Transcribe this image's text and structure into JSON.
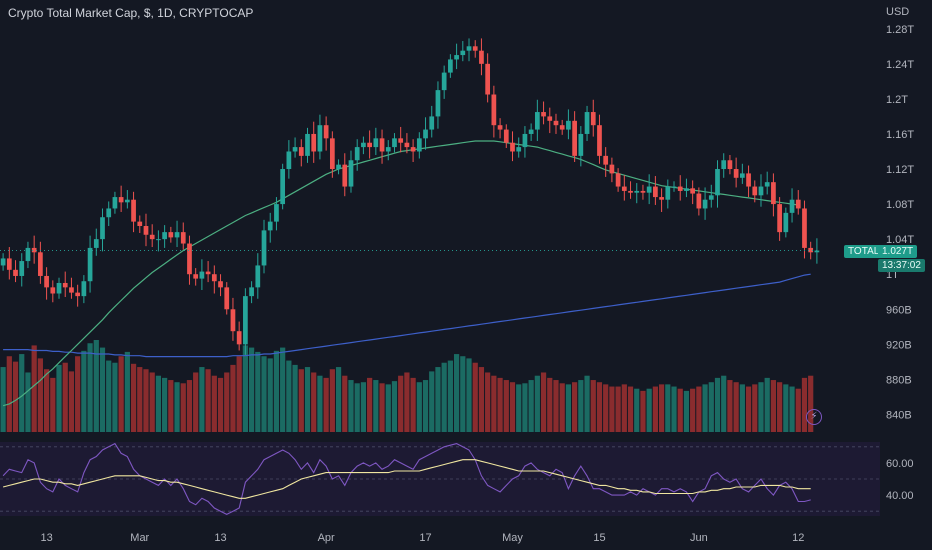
{
  "header": {
    "title": "Crypto Total Market Cap, $, 1D, CRYPTOCAP",
    "currency": "USD"
  },
  "price_tag": {
    "label": "TOTAL",
    "value": "1.027T",
    "countdown": "13:37:02"
  },
  "colors": {
    "up": "#26a69a",
    "down": "#ef5350",
    "ma_short": "#4caf82",
    "ma_long": "#3d5fc9",
    "rsi": "#7e57c2",
    "rsi_ma": "#f0e6a0",
    "volume_up": "#1b6b63",
    "volume_down": "#8a2c2e",
    "bg": "#141823"
  },
  "icons": {
    "bolt": "lightning-icon"
  },
  "chart_data": [
    {
      "type": "candlestick",
      "title": "Crypto Total Market Cap, $, 1D, CRYPTOCAP",
      "ylabel": "USD",
      "y_ticks": [
        "1.28T",
        "1.24T",
        "1.2T",
        "1.16T",
        "1.12T",
        "1.08T",
        "1.04T",
        "1T",
        "960B",
        "920B",
        "880B",
        "840B"
      ],
      "y_tick_values": [
        1280,
        1240,
        1200,
        1160,
        1120,
        1080,
        1040,
        1000,
        960,
        920,
        880,
        840
      ],
      "ylim": [
        820,
        1290
      ],
      "x_ticks": [
        "13",
        "Mar",
        "13",
        "Apr",
        "17",
        "May",
        "15",
        "Jun",
        "12"
      ],
      "close": [
        1018,
        1005,
        998,
        1015,
        1030,
        1025,
        998,
        985,
        978,
        990,
        985,
        979,
        975,
        992,
        1030,
        1040,
        1065,
        1075,
        1088,
        1082,
        1085,
        1060,
        1055,
        1045,
        1040,
        1040,
        1048,
        1042,
        1048,
        1035,
        1000,
        995,
        1003,
        1000,
        992,
        985,
        960,
        935,
        920,
        975,
        985,
        1010,
        1050,
        1060,
        1080,
        1120,
        1140,
        1145,
        1135,
        1160,
        1140,
        1170,
        1155,
        1120,
        1125,
        1100,
        1130,
        1145,
        1150,
        1145,
        1155,
        1140,
        1145,
        1155,
        1150,
        1145,
        1140,
        1155,
        1165,
        1180,
        1210,
        1230,
        1245,
        1250,
        1255,
        1260,
        1255,
        1240,
        1205,
        1170,
        1165,
        1150,
        1140,
        1145,
        1160,
        1165,
        1185,
        1180,
        1175,
        1170,
        1165,
        1175,
        1135,
        1160,
        1185,
        1170,
        1135,
        1125,
        1115,
        1100,
        1095,
        1093,
        1095,
        1093,
        1100,
        1088,
        1085,
        1100,
        1100,
        1095,
        1098,
        1092,
        1075,
        1085,
        1090,
        1120,
        1130,
        1120,
        1110,
        1115,
        1100,
        1090,
        1100,
        1105,
        1080,
        1048,
        1070,
        1085,
        1075,
        1030,
        1025,
        1027
      ],
      "open": [
        1010,
        1018,
        1005,
        998,
        1015,
        1030,
        1025,
        998,
        985,
        978,
        990,
        985,
        979,
        975,
        992,
        1030,
        1040,
        1065,
        1075,
        1088,
        1082,
        1085,
        1060,
        1055,
        1045,
        1040,
        1040,
        1048,
        1042,
        1048,
        1035,
        1000,
        995,
        1003,
        1000,
        992,
        985,
        960,
        935,
        920,
        975,
        985,
        1010,
        1050,
        1060,
        1080,
        1120,
        1140,
        1145,
        1135,
        1160,
        1140,
        1170,
        1155,
        1120,
        1125,
        1100,
        1130,
        1145,
        1150,
        1145,
        1155,
        1140,
        1145,
        1155,
        1150,
        1145,
        1140,
        1155,
        1165,
        1180,
        1210,
        1230,
        1245,
        1250,
        1255,
        1260,
        1255,
        1240,
        1205,
        1170,
        1165,
        1150,
        1140,
        1145,
        1160,
        1165,
        1185,
        1180,
        1175,
        1170,
        1165,
        1175,
        1135,
        1160,
        1185,
        1170,
        1135,
        1125,
        1115,
        1100,
        1095,
        1093,
        1095,
        1093,
        1100,
        1088,
        1085,
        1100,
        1100,
        1095,
        1098,
        1092,
        1075,
        1085,
        1090,
        1120,
        1130,
        1120,
        1110,
        1115,
        1100,
        1090,
        1100,
        1105,
        1080,
        1048,
        1070,
        1085,
        1075,
        1030,
        1025
      ],
      "ma_short_y": [
        850,
        852,
        856,
        861,
        867,
        873,
        879,
        886,
        892,
        899,
        906,
        913,
        920,
        927,
        934,
        941,
        948,
        956,
        963,
        970,
        977,
        984,
        990,
        996,
        1002,
        1007,
        1012,
        1017,
        1022,
        1027,
        1031,
        1035,
        1039,
        1043,
        1047,
        1051,
        1055,
        1059,
        1063,
        1067,
        1070,
        1073,
        1076,
        1079,
        1082,
        1086,
        1090,
        1094,
        1098,
        1102,
        1106,
        1110,
        1114,
        1117,
        1120,
        1122,
        1124,
        1126,
        1128,
        1130,
        1132,
        1134,
        1136,
        1138,
        1140,
        1141,
        1142,
        1143,
        1144,
        1145,
        1146,
        1147,
        1148,
        1149,
        1150,
        1151,
        1152,
        1152,
        1152,
        1152,
        1151,
        1150,
        1149,
        1148,
        1147,
        1146,
        1145,
        1143,
        1141,
        1139,
        1137,
        1135,
        1133,
        1131,
        1128,
        1125,
        1122,
        1119,
        1117,
        1115,
        1113,
        1111,
        1109,
        1107,
        1105,
        1103,
        1101,
        1100,
        1099,
        1098,
        1097,
        1096,
        1095,
        1094,
        1093,
        1092,
        1091,
        1090,
        1089,
        1088,
        1087,
        1086,
        1085,
        1084,
        1083,
        1082,
        1081,
        1080,
        1079
      ],
      "ma_long_y": [
        914,
        914,
        914,
        914,
        914,
        913,
        913,
        913,
        912,
        912,
        911,
        911,
        910,
        910,
        910,
        909,
        909,
        909,
        908,
        908,
        907,
        907,
        907,
        906,
        906,
        906,
        906,
        906,
        906,
        906,
        906,
        906,
        906,
        906,
        906,
        906,
        906,
        907,
        907,
        907,
        908,
        908,
        909,
        909,
        910,
        911,
        912,
        913,
        914,
        915,
        916,
        917,
        918,
        919,
        920,
        921,
        922,
        923,
        924,
        925,
        926,
        927,
        928,
        929,
        930,
        931,
        932,
        933,
        934,
        935,
        936,
        937,
        938,
        939,
        940,
        941,
        942,
        943,
        944,
        945,
        946,
        947,
        948,
        949,
        950,
        951,
        952,
        953,
        954,
        955,
        956,
        957,
        958,
        959,
        960,
        961,
        962,
        963,
        964,
        965,
        966,
        967,
        968,
        969,
        970,
        971,
        972,
        973,
        974,
        975,
        976,
        977,
        978,
        979,
        980,
        981,
        982,
        983,
        984,
        985,
        986,
        987,
        988,
        989,
        990,
        991,
        993,
        995,
        997,
        999,
        1000
      ]
    },
    {
      "type": "bar",
      "title": "",
      "xlabel": "",
      "ylabel": "",
      "values": [
        60,
        70,
        65,
        72,
        55,
        80,
        68,
        58,
        50,
        62,
        64,
        56,
        70,
        75,
        82,
        85,
        78,
        66,
        64,
        70,
        74,
        63,
        60,
        58,
        55,
        52,
        50,
        48,
        46,
        45,
        48,
        55,
        60,
        58,
        52,
        50,
        55,
        62,
        70,
        80,
        78,
        74,
        70,
        68,
        75,
        78,
        66,
        62,
        58,
        60,
        55,
        52,
        50,
        58,
        60,
        52,
        48,
        45,
        46,
        50,
        48,
        45,
        44,
        47,
        52,
        55,
        50,
        46,
        48,
        56,
        60,
        64,
        66,
        72,
        70,
        68,
        64,
        60,
        55,
        52,
        50,
        48,
        46,
        44,
        45,
        48,
        52,
        55,
        50,
        48,
        45,
        44,
        46,
        48,
        52,
        48,
        46,
        44,
        42,
        42,
        44,
        42,
        40,
        38,
        40,
        42,
        44,
        44,
        42,
        40,
        38,
        40,
        42,
        44,
        46,
        50,
        52,
        48,
        46,
        44,
        42,
        44,
        46,
        50,
        48,
        46,
        44,
        42,
        40,
        50,
        52
      ]
    },
    {
      "type": "line",
      "title": "",
      "y_ticks": [
        "60.00",
        "40.00"
      ],
      "y_tick_values": [
        60,
        40
      ],
      "ylim": [
        27,
        73
      ],
      "series": [
        {
          "values": [
            52,
            56,
            55,
            54,
            62,
            60,
            48,
            44,
            42,
            50,
            46,
            44,
            42,
            54,
            62,
            64,
            68,
            70,
            72,
            66,
            64,
            56,
            52,
            50,
            48,
            46,
            50,
            46,
            50,
            44,
            36,
            34,
            38,
            36,
            32,
            30,
            28,
            30,
            32,
            48,
            52,
            56,
            62,
            64,
            66,
            68,
            66,
            62,
            56,
            60,
            54,
            62,
            58,
            50,
            52,
            46,
            54,
            58,
            60,
            58,
            60,
            56,
            58,
            62,
            60,
            58,
            56,
            62,
            64,
            66,
            68,
            70,
            71,
            72,
            70,
            68,
            62,
            52,
            46,
            44,
            42,
            46,
            50,
            52,
            58,
            60,
            56,
            54,
            52,
            56,
            54,
            44,
            52,
            58,
            52,
            44,
            44,
            42,
            40,
            40,
            40,
            42,
            40,
            44,
            42,
            40,
            44,
            44,
            42,
            44,
            42,
            36,
            42,
            44,
            52,
            54,
            50,
            48,
            50,
            44,
            42,
            46,
            50,
            44,
            40,
            46,
            48,
            44,
            36,
            36,
            37
          ]
        },
        {
          "values": [
            45,
            46,
            47,
            48,
            49,
            50,
            50,
            49,
            48,
            48,
            47,
            47,
            46,
            47,
            48,
            49,
            50,
            51,
            52,
            52,
            52,
            52,
            52,
            51,
            50,
            49,
            49,
            48,
            48,
            47,
            46,
            45,
            44,
            43,
            42,
            41,
            40,
            39,
            38,
            38,
            39,
            40,
            41,
            42,
            43,
            44,
            46,
            48,
            50,
            51,
            52,
            53,
            54,
            54,
            54,
            54,
            54,
            54,
            54,
            54,
            54,
            54,
            54,
            55,
            55,
            55,
            55,
            55,
            56,
            57,
            58,
            59,
            60,
            61,
            62,
            62,
            62,
            61,
            60,
            59,
            58,
            57,
            56,
            55,
            55,
            55,
            55,
            55,
            54,
            53,
            52,
            51,
            50,
            49,
            48,
            47,
            46,
            46,
            45,
            44,
            44,
            43,
            43,
            42,
            42,
            41,
            41,
            41,
            41,
            41,
            41,
            41,
            42,
            42,
            43,
            43,
            44,
            44,
            45,
            45,
            45,
            45,
            46,
            46,
            46,
            46,
            45,
            45,
            44,
            44,
            44
          ]
        }
      ]
    }
  ]
}
